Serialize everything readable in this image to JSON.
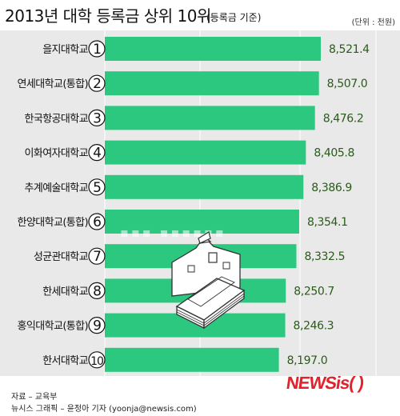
{
  "header": {
    "title": "2013년 대학 등록금 상위 10위",
    "subtitle": "(등록금 기준)",
    "unit": "(단위 : 천원)"
  },
  "footer": {
    "source": "자료 – 교육부",
    "credit": "뉴시스 그래픽 – 윤정아 기자 (yoonja@newsis.com)"
  },
  "logo": {
    "part1": "NEWS",
    "part2": "is",
    "part3": "( )"
  },
  "colors": {
    "bar": "#2cc87f",
    "value_text": "#2a5a1a",
    "background_panel": "#e9e9e9",
    "logo_red": "#e0232c"
  },
  "chart_data": {
    "type": "bar",
    "orientation": "horizontal",
    "categories": [
      "을지대학교",
      "연세대학교(통합)",
      "한국항공대학교",
      "이화여자대학교",
      "추계예술대학교",
      "한양대학교(통합)",
      "성균관대학교",
      "한세대학교",
      "홍익대학교(통합)",
      "한서대학교"
    ],
    "ranks": [
      "1",
      "2",
      "3",
      "4",
      "5",
      "6",
      "7",
      "8",
      "9",
      "10"
    ],
    "values": [
      8521.4,
      8507.0,
      8476.2,
      8405.8,
      8386.9,
      8354.1,
      8332.5,
      8250.7,
      8246.3,
      8197.0
    ],
    "value_labels": [
      "8,521.4",
      "8,507.0",
      "8,476.2",
      "8,405.8",
      "8,386.9",
      "8,354.1",
      "8,332.5",
      "8,250.7",
      "8,246.3",
      "8,197.0"
    ],
    "title": "2013년 대학 등록금 상위 10위",
    "xlabel": "",
    "ylabel": "",
    "grid": false
  }
}
